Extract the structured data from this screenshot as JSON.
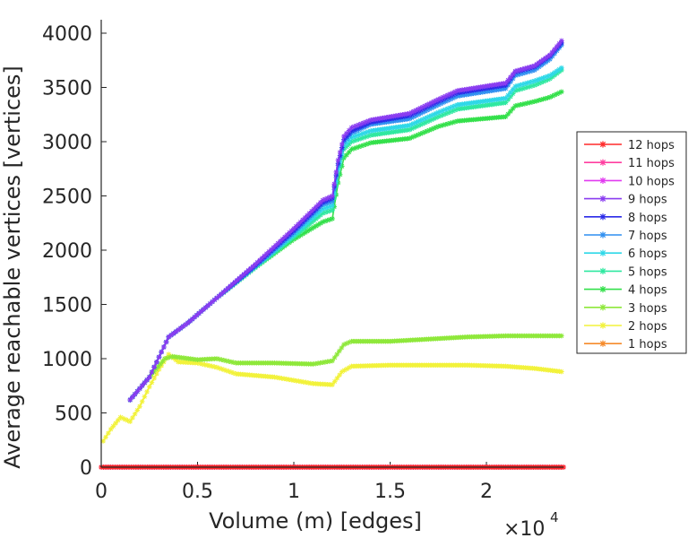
{
  "chart_data": {
    "type": "line",
    "title": "",
    "xlabel": "Volume (m) [edges]",
    "ylabel": "Average reachable vertices [vertices]",
    "x_multiplier_label": "×10",
    "x_multiplier_exp": "4",
    "xlim": [
      0,
      24000
    ],
    "ylim": [
      0,
      4000
    ],
    "xticks": [
      0,
      5000,
      10000,
      15000,
      20000
    ],
    "xtick_labels": [
      "0",
      "0.5",
      "1",
      "1.5",
      "2"
    ],
    "yticks": [
      0,
      500,
      1000,
      1500,
      2000,
      2500,
      3000,
      3500,
      4000
    ],
    "ytick_labels": [
      "0",
      "500",
      "1000",
      "1500",
      "2000",
      "2500",
      "3000",
      "3500",
      "4000"
    ],
    "legend_position": "right",
    "series": [
      {
        "name": "12 hops",
        "color": "#ff2a2a",
        "x": [
          0,
          24000
        ],
        "y": [
          0,
          0
        ]
      },
      {
        "name": "11 hops",
        "color": "#ff3ea0",
        "x": [
          0,
          24000
        ],
        "y": [
          0,
          0
        ]
      },
      {
        "name": "10 hops",
        "color": "#e23af0",
        "x": [
          0,
          24000
        ],
        "y": [
          0,
          0
        ]
      },
      {
        "name": "9 hops",
        "color": "#8a3cf0",
        "x": [
          1500,
          2500,
          3500,
          4500,
          6000,
          8000,
          10000,
          11500,
          12000,
          12300,
          12600,
          13000,
          14000,
          16000,
          17500,
          18500,
          21000,
          21500,
          22500,
          23300,
          23900
        ],
        "y": [
          620,
          830,
          1200,
          1330,
          1560,
          1870,
          2200,
          2460,
          2500,
          2830,
          3050,
          3130,
          3200,
          3260,
          3390,
          3470,
          3540,
          3650,
          3700,
          3800,
          3930
        ]
      },
      {
        "name": "8 hops",
        "color": "#2a2ae8",
        "x": [
          1500,
          2500,
          3500,
          4500,
          6000,
          8000,
          10000,
          11500,
          12000,
          12300,
          12600,
          13000,
          14000,
          16000,
          17500,
          18500,
          21000,
          21500,
          22500,
          23300,
          23900
        ],
        "y": [
          620,
          830,
          1200,
          1330,
          1560,
          1860,
          2180,
          2440,
          2480,
          2800,
          3020,
          3100,
          3180,
          3240,
          3370,
          3450,
          3520,
          3640,
          3690,
          3790,
          3910
        ]
      },
      {
        "name": "7 hops",
        "color": "#2f8ff0",
        "x": [
          1500,
          2500,
          3500,
          4500,
          6000,
          8000,
          10000,
          11500,
          12000,
          12300,
          12600,
          13000,
          14000,
          16000,
          17500,
          18500,
          21000,
          21500,
          22500,
          23300,
          23900
        ],
        "y": [
          620,
          830,
          1200,
          1330,
          1560,
          1850,
          2160,
          2420,
          2450,
          2780,
          3000,
          3080,
          3160,
          3210,
          3340,
          3420,
          3490,
          3610,
          3660,
          3760,
          3890
        ]
      },
      {
        "name": "6 hops",
        "color": "#2ed8e8",
        "x": [
          1500,
          2500,
          3500,
          4500,
          6000,
          8000,
          10000,
          11500,
          12000,
          12300,
          12600,
          13000,
          14000,
          16000,
          17500,
          18500,
          21000,
          21500,
          22500,
          23300,
          23900
        ],
        "y": [
          620,
          830,
          1200,
          1330,
          1560,
          1850,
          2140,
          2380,
          2410,
          2740,
          2960,
          3040,
          3100,
          3150,
          3270,
          3340,
          3400,
          3510,
          3560,
          3610,
          3680
        ]
      },
      {
        "name": "5 hops",
        "color": "#2ee8a0",
        "x": [
          1500,
          2500,
          3500,
          4500,
          6000,
          8000,
          10000,
          11500,
          12000,
          12300,
          12600,
          13000,
          14000,
          16000,
          17500,
          18500,
          21000,
          21500,
          22500,
          23300,
          23900
        ],
        "y": [
          620,
          830,
          1200,
          1330,
          1560,
          1840,
          2120,
          2340,
          2370,
          2700,
          2930,
          3000,
          3060,
          3110,
          3230,
          3300,
          3360,
          3470,
          3520,
          3580,
          3660
        ]
      },
      {
        "name": "4 hops",
        "color": "#33e04a",
        "x": [
          1500,
          2500,
          3500,
          4500,
          6000,
          8000,
          10000,
          11500,
          12000,
          12300,
          12600,
          13000,
          14000,
          16000,
          17500,
          18500,
          21000,
          21500,
          22500,
          23300,
          23900
        ],
        "y": [
          620,
          830,
          1200,
          1330,
          1560,
          1840,
          2100,
          2260,
          2290,
          2620,
          2850,
          2930,
          2990,
          3030,
          3140,
          3190,
          3230,
          3330,
          3370,
          3410,
          3460
        ]
      },
      {
        "name": "3 hops",
        "color": "#8ee83a",
        "x": [
          1500,
          2500,
          3300,
          3700,
          5000,
          6000,
          7000,
          9000,
          11000,
          12000,
          12600,
          13000,
          15000,
          17000,
          19000,
          21000,
          23900
        ],
        "y": [
          620,
          830,
          1000,
          1020,
          990,
          1000,
          960,
          960,
          950,
          980,
          1130,
          1160,
          1160,
          1180,
          1200,
          1210,
          1210
        ]
      },
      {
        "name": "2 hops",
        "color": "#f2f23a",
        "x": [
          100,
          500,
          1000,
          1500,
          2000,
          2500,
          3000,
          3500,
          4000,
          5000,
          6000,
          7000,
          9000,
          10000,
          11000,
          12000,
          12500,
          13000,
          15000,
          17000,
          19000,
          21000,
          22500,
          23900
        ],
        "y": [
          240,
          350,
          460,
          420,
          560,
          740,
          900,
          1040,
          970,
          960,
          920,
          860,
          830,
          800,
          770,
          760,
          880,
          930,
          940,
          940,
          940,
          930,
          910,
          880
        ]
      },
      {
        "name": "1 hops",
        "color": "#f58a2a",
        "x": [
          0,
          24000
        ],
        "y": [
          0,
          0
        ]
      }
    ]
  }
}
